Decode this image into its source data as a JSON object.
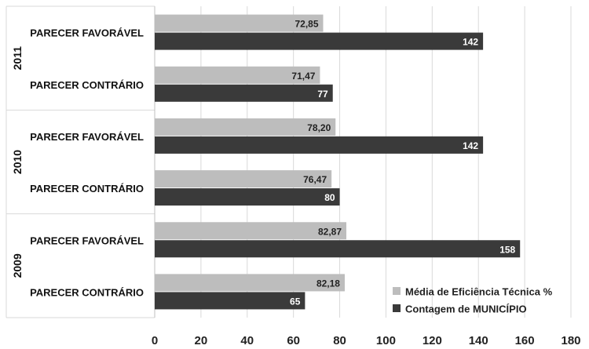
{
  "chart_data": {
    "type": "bar",
    "orientation": "horizontal",
    "xlim": [
      0,
      180
    ],
    "x_ticks": [
      "0",
      "20",
      "40",
      "60",
      "80",
      "100",
      "120",
      "140",
      "160",
      "180"
    ],
    "grid": true,
    "legend_position": "bottom-right",
    "groups": [
      {
        "year": "2011",
        "categories": [
          {
            "label": "PARECER FAVORÁVEL",
            "media": 72.85,
            "media_label": "72,85",
            "contagem": 142,
            "contagem_label": "142"
          },
          {
            "label": "PARECER CONTRÁRIO",
            "media": 71.47,
            "media_label": "71,47",
            "contagem": 77,
            "contagem_label": "77"
          }
        ]
      },
      {
        "year": "2010",
        "categories": [
          {
            "label": "PARECER FAVORÁVEL",
            "media": 78.2,
            "media_label": "78,20",
            "contagem": 142,
            "contagem_label": "142"
          },
          {
            "label": "PARECER CONTRÁRIO",
            "media": 76.47,
            "media_label": "76,47",
            "contagem": 80,
            "contagem_label": "80"
          }
        ]
      },
      {
        "year": "2009",
        "categories": [
          {
            "label": "PARECER FAVORÁVEL",
            "media": 82.87,
            "media_label": "82,87",
            "contagem": 158,
            "contagem_label": "158"
          },
          {
            "label": "PARECER CONTRÁRIO",
            "media": 82.18,
            "media_label": "82,18",
            "contagem": 65,
            "contagem_label": "65"
          }
        ]
      }
    ],
    "series": [
      {
        "name": "Média de Eficiência Técnica %",
        "key": "media",
        "color": "#bdbdbd"
      },
      {
        "name": "Contagem de MUNICÍPIO",
        "key": "contagem",
        "color": "#3a3a3a"
      }
    ]
  }
}
